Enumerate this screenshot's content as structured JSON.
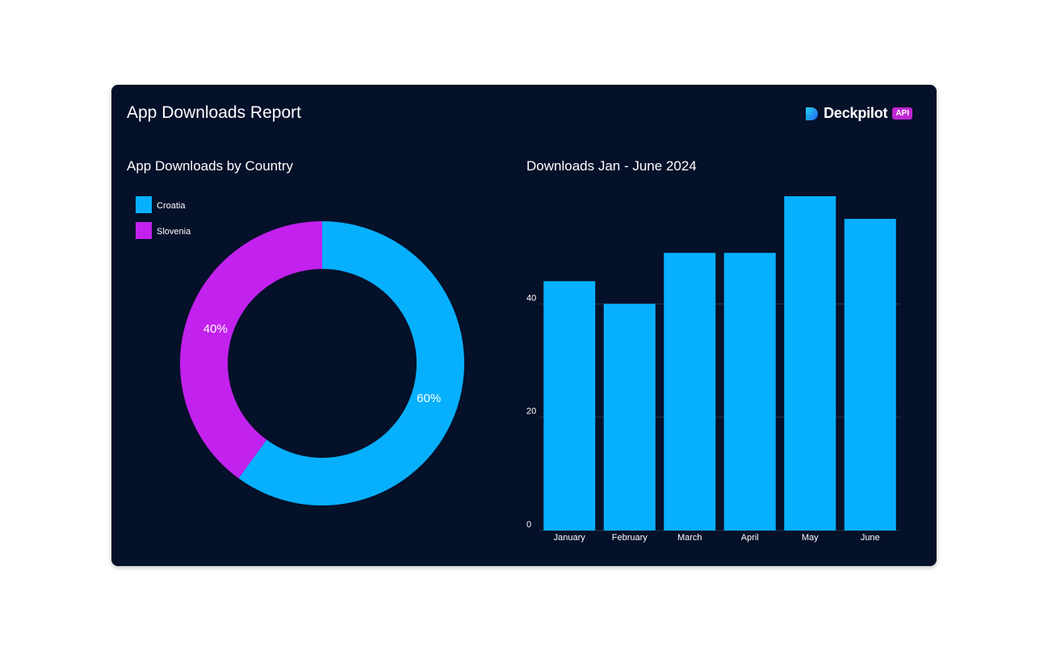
{
  "report": {
    "title": "App Downloads Report",
    "brand_name": "Deckpilot",
    "brand_badge": "API"
  },
  "colors": {
    "background": "#051029",
    "croatia": "#07b0fd",
    "slovenia": "#c321ee",
    "text": "#ffffff",
    "grid": "#2a3448"
  },
  "chart_data": [
    {
      "type": "pie",
      "title": "App Downloads by Country",
      "labels": [
        "Croatia",
        "Slovenia"
      ],
      "values": [
        60,
        40
      ],
      "data_labels": [
        "60%",
        "40%"
      ],
      "legend": "top-left",
      "donut": true
    },
    {
      "type": "bar",
      "title": "Downloads Jan - June 2024",
      "categories": [
        "January",
        "February",
        "March",
        "April",
        "May",
        "June"
      ],
      "values": [
        44,
        40,
        49,
        49,
        59,
        55
      ],
      "ylim": [
        0,
        59
      ],
      "yticks": [
        0,
        20,
        40
      ],
      "grid": true,
      "xlabel": "",
      "ylabel": ""
    }
  ]
}
